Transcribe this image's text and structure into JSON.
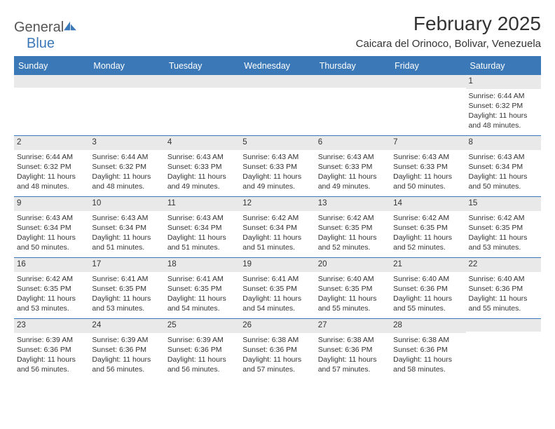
{
  "brand": {
    "part1": "General",
    "part2": "Blue"
  },
  "title": "February 2025",
  "subtitle": "Caicara del Orinoco, Bolivar, Venezuela",
  "colors": {
    "accent": "#3b78b8",
    "header_text": "#ffffff",
    "daynum_bg": "#e9e9e9",
    "body_text": "#333333",
    "logo_gray": "#555555"
  },
  "weekdays": [
    "Sunday",
    "Monday",
    "Tuesday",
    "Wednesday",
    "Thursday",
    "Friday",
    "Saturday"
  ],
  "weeks": [
    [
      {
        "n": "",
        "lines": [
          "",
          "",
          "",
          ""
        ]
      },
      {
        "n": "",
        "lines": [
          "",
          "",
          "",
          ""
        ]
      },
      {
        "n": "",
        "lines": [
          "",
          "",
          "",
          ""
        ]
      },
      {
        "n": "",
        "lines": [
          "",
          "",
          "",
          ""
        ]
      },
      {
        "n": "",
        "lines": [
          "",
          "",
          "",
          ""
        ]
      },
      {
        "n": "",
        "lines": [
          "",
          "",
          "",
          ""
        ]
      },
      {
        "n": "1",
        "lines": [
          "Sunrise: 6:44 AM",
          "Sunset: 6:32 PM",
          "Daylight: 11 hours",
          "and 48 minutes."
        ]
      }
    ],
    [
      {
        "n": "2",
        "lines": [
          "Sunrise: 6:44 AM",
          "Sunset: 6:32 PM",
          "Daylight: 11 hours",
          "and 48 minutes."
        ]
      },
      {
        "n": "3",
        "lines": [
          "Sunrise: 6:44 AM",
          "Sunset: 6:32 PM",
          "Daylight: 11 hours",
          "and 48 minutes."
        ]
      },
      {
        "n": "4",
        "lines": [
          "Sunrise: 6:43 AM",
          "Sunset: 6:33 PM",
          "Daylight: 11 hours",
          "and 49 minutes."
        ]
      },
      {
        "n": "5",
        "lines": [
          "Sunrise: 6:43 AM",
          "Sunset: 6:33 PM",
          "Daylight: 11 hours",
          "and 49 minutes."
        ]
      },
      {
        "n": "6",
        "lines": [
          "Sunrise: 6:43 AM",
          "Sunset: 6:33 PM",
          "Daylight: 11 hours",
          "and 49 minutes."
        ]
      },
      {
        "n": "7",
        "lines": [
          "Sunrise: 6:43 AM",
          "Sunset: 6:33 PM",
          "Daylight: 11 hours",
          "and 50 minutes."
        ]
      },
      {
        "n": "8",
        "lines": [
          "Sunrise: 6:43 AM",
          "Sunset: 6:34 PM",
          "Daylight: 11 hours",
          "and 50 minutes."
        ]
      }
    ],
    [
      {
        "n": "9",
        "lines": [
          "Sunrise: 6:43 AM",
          "Sunset: 6:34 PM",
          "Daylight: 11 hours",
          "and 50 minutes."
        ]
      },
      {
        "n": "10",
        "lines": [
          "Sunrise: 6:43 AM",
          "Sunset: 6:34 PM",
          "Daylight: 11 hours",
          "and 51 minutes."
        ]
      },
      {
        "n": "11",
        "lines": [
          "Sunrise: 6:43 AM",
          "Sunset: 6:34 PM",
          "Daylight: 11 hours",
          "and 51 minutes."
        ]
      },
      {
        "n": "12",
        "lines": [
          "Sunrise: 6:42 AM",
          "Sunset: 6:34 PM",
          "Daylight: 11 hours",
          "and 51 minutes."
        ]
      },
      {
        "n": "13",
        "lines": [
          "Sunrise: 6:42 AM",
          "Sunset: 6:35 PM",
          "Daylight: 11 hours",
          "and 52 minutes."
        ]
      },
      {
        "n": "14",
        "lines": [
          "Sunrise: 6:42 AM",
          "Sunset: 6:35 PM",
          "Daylight: 11 hours",
          "and 52 minutes."
        ]
      },
      {
        "n": "15",
        "lines": [
          "Sunrise: 6:42 AM",
          "Sunset: 6:35 PM",
          "Daylight: 11 hours",
          "and 53 minutes."
        ]
      }
    ],
    [
      {
        "n": "16",
        "lines": [
          "Sunrise: 6:42 AM",
          "Sunset: 6:35 PM",
          "Daylight: 11 hours",
          "and 53 minutes."
        ]
      },
      {
        "n": "17",
        "lines": [
          "Sunrise: 6:41 AM",
          "Sunset: 6:35 PM",
          "Daylight: 11 hours",
          "and 53 minutes."
        ]
      },
      {
        "n": "18",
        "lines": [
          "Sunrise: 6:41 AM",
          "Sunset: 6:35 PM",
          "Daylight: 11 hours",
          "and 54 minutes."
        ]
      },
      {
        "n": "19",
        "lines": [
          "Sunrise: 6:41 AM",
          "Sunset: 6:35 PM",
          "Daylight: 11 hours",
          "and 54 minutes."
        ]
      },
      {
        "n": "20",
        "lines": [
          "Sunrise: 6:40 AM",
          "Sunset: 6:35 PM",
          "Daylight: 11 hours",
          "and 55 minutes."
        ]
      },
      {
        "n": "21",
        "lines": [
          "Sunrise: 6:40 AM",
          "Sunset: 6:36 PM",
          "Daylight: 11 hours",
          "and 55 minutes."
        ]
      },
      {
        "n": "22",
        "lines": [
          "Sunrise: 6:40 AM",
          "Sunset: 6:36 PM",
          "Daylight: 11 hours",
          "and 55 minutes."
        ]
      }
    ],
    [
      {
        "n": "23",
        "lines": [
          "Sunrise: 6:39 AM",
          "Sunset: 6:36 PM",
          "Daylight: 11 hours",
          "and 56 minutes."
        ]
      },
      {
        "n": "24",
        "lines": [
          "Sunrise: 6:39 AM",
          "Sunset: 6:36 PM",
          "Daylight: 11 hours",
          "and 56 minutes."
        ]
      },
      {
        "n": "25",
        "lines": [
          "Sunrise: 6:39 AM",
          "Sunset: 6:36 PM",
          "Daylight: 11 hours",
          "and 56 minutes."
        ]
      },
      {
        "n": "26",
        "lines": [
          "Sunrise: 6:38 AM",
          "Sunset: 6:36 PM",
          "Daylight: 11 hours",
          "and 57 minutes."
        ]
      },
      {
        "n": "27",
        "lines": [
          "Sunrise: 6:38 AM",
          "Sunset: 6:36 PM",
          "Daylight: 11 hours",
          "and 57 minutes."
        ]
      },
      {
        "n": "28",
        "lines": [
          "Sunrise: 6:38 AM",
          "Sunset: 6:36 PM",
          "Daylight: 11 hours",
          "and 58 minutes."
        ]
      },
      {
        "n": "",
        "lines": [
          "",
          "",
          "",
          ""
        ]
      }
    ]
  ]
}
